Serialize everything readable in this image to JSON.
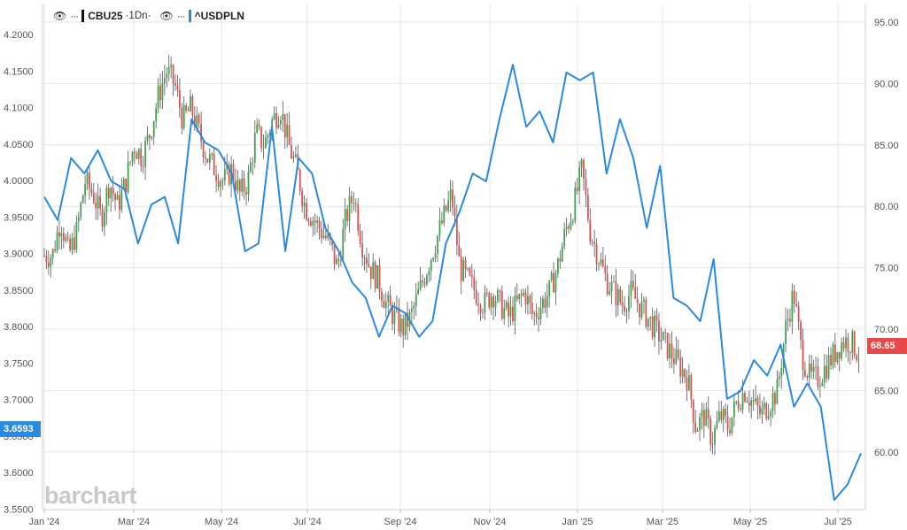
{
  "legend": {
    "eye_icon": "eye-icon",
    "more_icon": "ellipsis-icon",
    "primary_symbol": "CBU25",
    "primary_interval": "·1Dn·",
    "compare_symbol": "^USDPLN"
  },
  "price_tags": {
    "left_value": "3.6593",
    "right_value": "68.65"
  },
  "branding": {
    "logo_text": "barchart"
  },
  "colors": {
    "compare_line": "#2a8ae0",
    "up_candle": "#3fa34d",
    "down_candle": "#d9534f",
    "wick": "#555555",
    "right_tag": "#e84a4a",
    "left_tag": "#2a8ae0",
    "grid": "#e4e4e4"
  },
  "chart_data": {
    "type": "line",
    "x_tick_labels": [
      "Jan '24",
      "Mar '24",
      "May '24",
      "Jul '24",
      "Sep '24",
      "Nov '24",
      "Jan '25",
      "Mar '25",
      "May '25",
      "Jul '25"
    ],
    "left_axis": {
      "range": [
        3.55,
        4.2
      ],
      "tick_labels": [
        "4.2000",
        "4.1500",
        "4.1000",
        "4.0500",
        "4.0000",
        "3.9500",
        "3.9000",
        "3.8500",
        "3.8000",
        "3.7500",
        "3.7000",
        "3.6500",
        "3.6000",
        "3.5500"
      ]
    },
    "right_axis": {
      "range": [
        57.5,
        97.5
      ],
      "tick_labels": [
        "95.00",
        "90.00",
        "85.00",
        "80.00",
        "75.00",
        "70.00",
        "65.00",
        "60.00"
      ]
    },
    "series": [
      {
        "name": "^USDPLN",
        "axis": "left",
        "style": "line",
        "points": [
          [
            "Jan '24",
            3.99
          ],
          [
            "Jan '24+",
            3.96
          ],
          [
            "Feb '24-",
            4.04
          ],
          [
            "Feb '24",
            4.02
          ],
          [
            "Feb '24+",
            4.05
          ],
          [
            "Mar '24-",
            4.01
          ],
          [
            "Mar '24",
            4.0
          ],
          [
            "Mar '24+",
            3.93
          ],
          [
            "Apr '24-",
            3.98
          ],
          [
            "Apr '24",
            3.99
          ],
          [
            "Apr '24+",
            3.93
          ],
          [
            "Apr '24++",
            4.09
          ],
          [
            "May '24-",
            4.06
          ],
          [
            "May '24",
            4.05
          ],
          [
            "May '24+",
            4.02
          ],
          [
            "Jun '24-",
            3.92
          ],
          [
            "Jun '24",
            3.93
          ],
          [
            "Jun '24+",
            4.08
          ],
          [
            "Jun '24++",
            3.92
          ],
          [
            "Jul '24",
            4.04
          ],
          [
            "Jul '24+",
            4.02
          ],
          [
            "Jul '24++",
            3.95
          ],
          [
            "Aug '24-",
            3.92
          ],
          [
            "Aug '24",
            3.88
          ],
          [
            "Aug '24+",
            3.86
          ],
          [
            "Sep '24-",
            3.81
          ],
          [
            "Sep '24",
            3.85
          ],
          [
            "Sep '24+",
            3.84
          ],
          [
            "Sep '24++",
            3.81
          ],
          [
            "Oct '24-",
            3.83
          ],
          [
            "Oct '24",
            3.93
          ],
          [
            "Oct '24+",
            3.97
          ],
          [
            "Nov '24-",
            4.02
          ],
          [
            "Nov '24",
            4.01
          ],
          [
            "Nov '24+",
            4.09
          ],
          [
            "Nov '24++",
            4.16
          ],
          [
            "Dec '24-",
            4.08
          ],
          [
            "Dec '24",
            4.1
          ],
          [
            "Dec '24+",
            4.06
          ],
          [
            "Jan '25-",
            4.15
          ],
          [
            "Jan '25",
            4.14
          ],
          [
            "Jan '25+",
            4.15
          ],
          [
            "Feb '25-",
            4.02
          ],
          [
            "Feb '25",
            4.09
          ],
          [
            "Feb '25+",
            4.04
          ],
          [
            "Mar '25-",
            3.95
          ],
          [
            "Mar '25",
            4.03
          ],
          [
            "Mar '25+",
            3.86
          ],
          [
            "Mar '25++",
            3.85
          ],
          [
            "Apr '25-",
            3.83
          ],
          [
            "Apr '25",
            3.91
          ],
          [
            "Apr '25+",
            3.73
          ],
          [
            "May '25-",
            3.74
          ],
          [
            "May '25",
            3.78
          ],
          [
            "May '25+",
            3.76
          ],
          [
            "May '25++",
            3.8
          ],
          [
            "Jun '25-",
            3.72
          ],
          [
            "Jun '25",
            3.75
          ],
          [
            "Jun '25+",
            3.72
          ],
          [
            "Jul '25-",
            3.6
          ],
          [
            "Jul '25",
            3.62
          ],
          [
            "Jul '25+",
            3.66
          ]
        ]
      },
      {
        "name": "CBU25",
        "axis": "right",
        "style": "candles",
        "close_path": [
          76,
          76,
          79,
          76,
          78,
          82,
          81,
          79,
          82,
          80,
          82,
          85,
          84,
          86,
          89,
          91,
          90,
          87,
          88,
          86,
          84,
          83,
          82,
          83,
          81,
          82,
          86,
          85,
          87,
          88,
          85,
          83,
          80,
          79,
          78,
          77,
          75,
          79,
          81,
          77,
          75,
          74,
          72,
          71,
          70,
          71,
          73,
          75,
          77,
          79,
          81,
          75,
          74,
          73,
          72,
          73,
          72,
          71,
          72,
          73,
          71,
          72,
          73,
          75,
          78,
          80,
          83,
          78,
          76,
          74,
          73,
          72,
          73,
          72,
          71,
          70,
          69,
          68,
          67,
          66,
          62,
          63,
          61,
          63,
          62,
          64,
          65,
          64,
          63,
          64,
          65,
          70,
          73,
          68,
          66,
          66,
          67,
          68,
          69,
          69,
          68
        ]
      }
    ],
    "last_values": {
      "^USDPLN": 3.6593,
      "CBU25": 68.65
    }
  }
}
